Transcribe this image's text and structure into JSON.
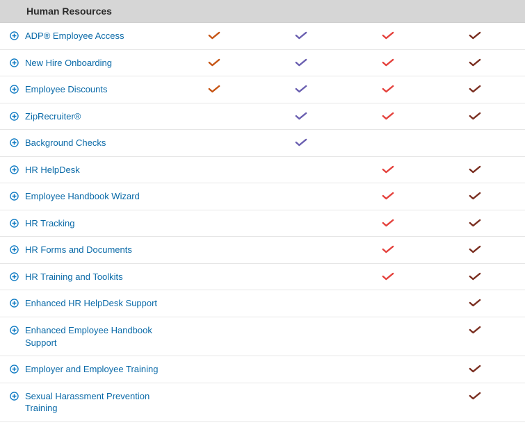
{
  "colors": {
    "header_bg": "#d6d6d6",
    "border": "#e6e6e6",
    "link": "#0a6aa8",
    "expand_icon": "#0a78c2",
    "check_orange": "#c65414",
    "check_purple": "#6a5fb0",
    "check_red": "#e4413c",
    "check_brown": "#7a2e20"
  },
  "section": {
    "title": "Human Resources",
    "columns": 4,
    "rows": [
      {
        "label": "ADP® Employee Access",
        "ticks": [
          "orange",
          "purple",
          "red",
          "brown"
        ]
      },
      {
        "label": "New Hire Onboarding",
        "ticks": [
          "orange",
          "purple",
          "red",
          "brown"
        ]
      },
      {
        "label": "Employee Discounts",
        "ticks": [
          "orange",
          "purple",
          "red",
          "brown"
        ]
      },
      {
        "label": "ZipRecruiter®",
        "ticks": [
          "",
          "purple",
          "red",
          "brown"
        ]
      },
      {
        "label": "Background Checks",
        "ticks": [
          "",
          "purple",
          "",
          ""
        ]
      },
      {
        "label": "HR HelpDesk",
        "ticks": [
          "",
          "",
          "red",
          "brown"
        ]
      },
      {
        "label": "Employee Handbook Wizard",
        "ticks": [
          "",
          "",
          "red",
          "brown"
        ]
      },
      {
        "label": "HR Tracking",
        "ticks": [
          "",
          "",
          "red",
          "brown"
        ]
      },
      {
        "label": "HR Forms and Documents",
        "ticks": [
          "",
          "",
          "red",
          "brown"
        ]
      },
      {
        "label": "HR Training and Toolkits",
        "ticks": [
          "",
          "",
          "red",
          "brown"
        ]
      },
      {
        "label": "Enhanced HR HelpDesk Support",
        "ticks": [
          "",
          "",
          "",
          "brown"
        ]
      },
      {
        "label": "Enhanced Employee Handbook Support",
        "ticks": [
          "",
          "",
          "",
          "brown"
        ]
      },
      {
        "label": "Employer and Employee Training",
        "ticks": [
          "",
          "",
          "",
          "brown"
        ]
      },
      {
        "label": "Sexual Harassment Prevention Training",
        "ticks": [
          "",
          "",
          "",
          "brown"
        ]
      }
    ]
  }
}
